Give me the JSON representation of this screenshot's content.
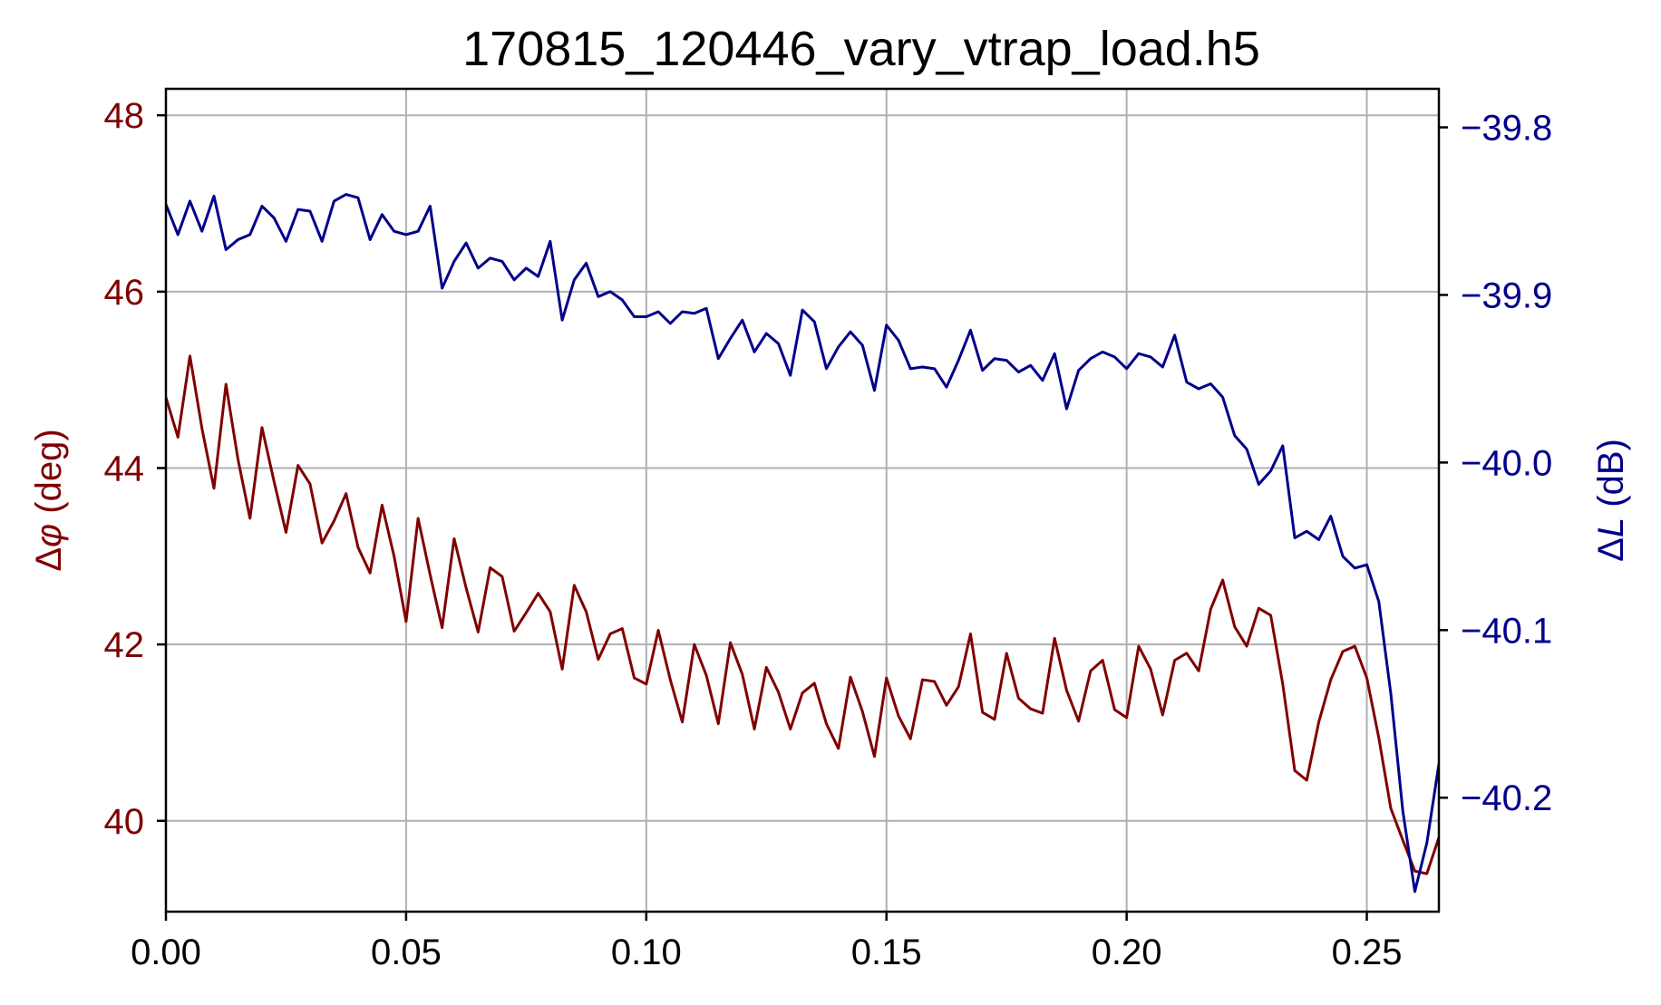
{
  "chart_data": {
    "type": "line",
    "title": "170815_120446_vary_vtrap_load.h5",
    "xlabel": "",
    "xlim": [
      0,
      0.265
    ],
    "x_ticks": [
      0.0,
      0.05,
      0.1,
      0.15,
      0.2,
      0.25
    ],
    "x_tick_labels": [
      "0.00",
      "0.05",
      "0.10",
      "0.15",
      "0.20",
      "0.25"
    ],
    "grid": true,
    "left_axis": {
      "label_prefix": "Δ",
      "label_symbol": "φ",
      "label_suffix": " (deg)",
      "ylim": [
        38.97,
        48.3
      ],
      "ticks": [
        40,
        42,
        44,
        46,
        48
      ],
      "tick_labels": [
        "40",
        "42",
        "44",
        "46",
        "48"
      ],
      "color": "#800000"
    },
    "right_axis": {
      "label_prefix": "Δ",
      "label_symbol": "L",
      "label_suffix": " (dB)",
      "ylim": [
        -40.268,
        -39.777
      ],
      "ticks": [
        -39.8,
        -39.9,
        -40.0,
        -40.1,
        -40.2
      ],
      "tick_labels": [
        "−39.8",
        "−39.9",
        "−40.0",
        "−40.1",
        "−40.2"
      ],
      "color": "#00008b"
    },
    "x_start": 0.0,
    "x_step": 0.0025,
    "series": [
      {
        "axis": "left",
        "color": "#800000",
        "values": [
          44.8,
          44.35,
          45.27,
          44.45,
          43.77,
          44.95,
          44.1,
          43.43,
          44.46,
          43.85,
          43.27,
          44.03,
          43.82,
          43.15,
          43.4,
          43.71,
          43.1,
          42.81,
          43.58,
          43.0,
          42.26,
          43.43,
          42.79,
          42.19,
          43.2,
          42.64,
          42.14,
          42.87,
          42.77,
          42.15,
          42.36,
          42.58,
          42.37,
          41.72,
          42.67,
          42.37,
          41.83,
          42.12,
          42.18,
          41.62,
          41.55,
          42.16,
          41.6,
          41.12,
          42.0,
          41.65,
          41.1,
          42.02,
          41.66,
          41.04,
          41.74,
          41.46,
          41.04,
          41.45,
          41.56,
          41.1,
          40.82,
          41.63,
          41.24,
          40.73,
          41.62,
          41.19,
          40.93,
          41.6,
          41.58,
          41.31,
          41.52,
          42.12,
          41.23,
          41.15,
          41.9,
          41.39,
          41.27,
          41.22,
          42.07,
          41.48,
          41.13,
          41.7,
          41.82,
          41.26,
          41.17,
          41.98,
          41.72,
          41.2,
          41.82,
          41.9,
          41.7,
          42.4,
          42.73,
          42.2,
          41.98,
          42.41,
          42.33,
          41.55,
          40.57,
          40.46,
          41.12,
          41.6,
          41.92,
          41.98,
          41.62,
          40.94,
          40.14,
          39.78,
          39.43,
          39.4,
          39.81
        ]
      },
      {
        "axis": "right",
        "color": "#00008b",
        "values": [
          -39.846,
          -39.864,
          -39.844,
          -39.862,
          -39.841,
          -39.873,
          -39.867,
          -39.864,
          -39.847,
          -39.854,
          -39.868,
          -39.849,
          -39.85,
          -39.868,
          -39.844,
          -39.84,
          -39.842,
          -39.867,
          -39.852,
          -39.862,
          -39.864,
          -39.862,
          -39.847,
          -39.896,
          -39.88,
          -39.869,
          -39.884,
          -39.878,
          -39.88,
          -39.891,
          -39.884,
          -39.889,
          -39.868,
          -39.915,
          -39.891,
          -39.881,
          -39.901,
          -39.898,
          -39.903,
          -39.913,
          -39.913,
          -39.91,
          -39.917,
          -39.91,
          -39.911,
          -39.908,
          -39.938,
          -39.926,
          -39.915,
          -39.934,
          -39.923,
          -39.929,
          -39.948,
          -39.909,
          -39.916,
          -39.944,
          -39.931,
          -39.922,
          -39.93,
          -39.957,
          -39.918,
          -39.927,
          -39.944,
          -39.943,
          -39.944,
          -39.955,
          -39.939,
          -39.921,
          -39.945,
          -39.938,
          -39.939,
          -39.946,
          -39.942,
          -39.951,
          -39.935,
          -39.968,
          -39.945,
          -39.938,
          -39.934,
          -39.937,
          -39.944,
          -39.935,
          -39.937,
          -39.943,
          -39.924,
          -39.952,
          -39.956,
          -39.953,
          -39.961,
          -39.984,
          -39.992,
          -40.013,
          -40.005,
          -39.99,
          -40.045,
          -40.041,
          -40.046,
          -40.032,
          -40.056,
          -40.063,
          -40.061,
          -40.083,
          -40.138,
          -40.208,
          -40.256,
          -40.227,
          -40.18
        ]
      }
    ]
  }
}
